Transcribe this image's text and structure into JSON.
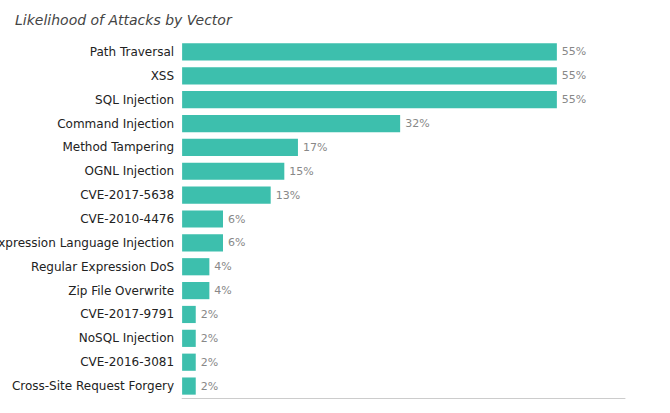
{
  "chart_data": {
    "type": "bar",
    "title": "Likelihood of Attacks by Vector",
    "orientation": "horizontal",
    "categories": [
      "Cross-Site Request Forgery",
      "CVE-2016-3081",
      "NoSQL Injection",
      "CVE-2017-9791",
      "Zip File Overwrite",
      "Regular Expression DoS",
      "Expression Language Injection",
      "CVE-2010-4476",
      "CVE-2017-5638",
      "OGNL Injection",
      "Method Tampering",
      "Command Injection",
      "SQL Injection",
      "XSS",
      "Path Traversal"
    ],
    "values": [
      2,
      2,
      2,
      2,
      4,
      4,
      6,
      6,
      13,
      15,
      17,
      32,
      55,
      55,
      55
    ],
    "value_labels": [
      "2%",
      "2%",
      "2%",
      "2%",
      "4%",
      "4%",
      "6%",
      "6%",
      "13%",
      "15%",
      "17%",
      "32%",
      "55%",
      "55%",
      "55%"
    ],
    "color": "#3dbfad",
    "xlim": [
      0,
      65
    ],
    "data_labels": true,
    "tick_labels": "y",
    "grid": false
  }
}
